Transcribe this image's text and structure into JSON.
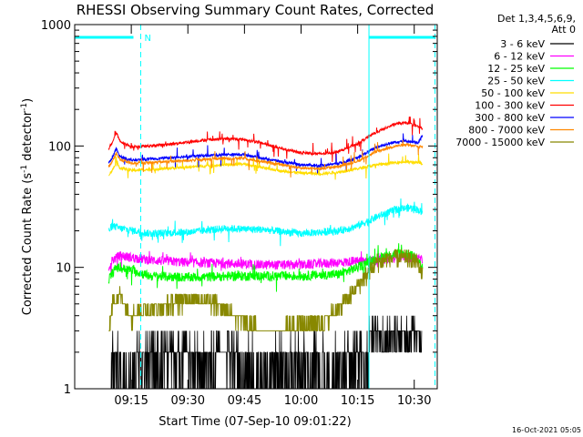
{
  "chart_data": {
    "type": "line",
    "title": "RHESSI Observing Summary Count Rates, Corrected",
    "xlabel": "Start Time (07-Sep-10 09:01:22)",
    "ylabel": "Corrected Count Rate (s⁻¹ detector⁻¹)",
    "ylabel_main": "Corrected Count Rate (s",
    "ylabel_sup1": "-1",
    "ylabel_mid": " detector",
    "ylabel_sup2": "-1",
    "ylabel_end": ")",
    "yscale": "log",
    "ylim": [
      1,
      1000
    ],
    "xlim": [
      "09:01:22",
      "10:37:30"
    ],
    "xticks": [
      {
        "t": 15,
        "label": "09:15"
      },
      {
        "t": 30,
        "label": "09:30"
      },
      {
        "t": 45,
        "label": "09:45"
      },
      {
        "t": 60,
        "label": "10:00"
      },
      {
        "t": 75,
        "label": "10:15"
      },
      {
        "t": 90,
        "label": "10:30"
      }
    ],
    "yticks": [
      {
        "v": 1,
        "label": "1"
      },
      {
        "v": 10,
        "label": "10"
      },
      {
        "v": 100,
        "label": "100"
      },
      {
        "v": 1000,
        "label": "1000"
      }
    ],
    "legend_title_1": "Det 1,3,4,5,6,9,",
    "legend_title_2": "Att 0",
    "legend_placement": "right",
    "timestamp": "16-Oct-2021 05:05",
    "night_marker_label": "N",
    "series": [
      {
        "name": "3 - 6 keV",
        "color": "#000000",
        "kind": "quantized",
        "levels": [
          1,
          2,
          3,
          4
        ]
      },
      {
        "name": "6 - 12 keV",
        "color": "#ff00ff",
        "points": [
          [
            9,
            10
          ],
          [
            10,
            11.5
          ],
          [
            12,
            12.5
          ],
          [
            20,
            11.5
          ],
          [
            30,
            11
          ],
          [
            40,
            10.8
          ],
          [
            50,
            10.5
          ],
          [
            60,
            10.5
          ],
          [
            70,
            11
          ],
          [
            80,
            11.5
          ],
          [
            85,
            12
          ],
          [
            90,
            12
          ],
          [
            92,
            11.5
          ]
        ]
      },
      {
        "name": "12 - 25 keV",
        "color": "#00ff00",
        "points": [
          [
            9,
            8
          ],
          [
            11,
            10
          ],
          [
            15,
            9.5
          ],
          [
            20,
            8.5
          ],
          [
            30,
            8.3
          ],
          [
            45,
            8.5
          ],
          [
            60,
            8.5
          ],
          [
            70,
            8.8
          ],
          [
            75,
            10
          ],
          [
            80,
            12
          ],
          [
            85,
            13
          ],
          [
            88,
            13
          ],
          [
            91,
            12
          ],
          [
            92,
            10
          ]
        ]
      },
      {
        "name": "25 - 50 keV",
        "color": "#00ffff",
        "points": [
          [
            9,
            20
          ],
          [
            10,
            22
          ],
          [
            12,
            21
          ],
          [
            20,
            19
          ],
          [
            30,
            19.5
          ],
          [
            40,
            21
          ],
          [
            50,
            20.5
          ],
          [
            60,
            19
          ],
          [
            70,
            20
          ],
          [
            75,
            22
          ],
          [
            80,
            26
          ],
          [
            85,
            30
          ],
          [
            89,
            31
          ],
          [
            91,
            30
          ],
          [
            92,
            28
          ]
        ]
      },
      {
        "name": "50 - 100 keV",
        "color": "#ffdd00",
        "points": [
          [
            9,
            58
          ],
          [
            10,
            63
          ],
          [
            11,
            74
          ],
          [
            12,
            66
          ],
          [
            15,
            63
          ],
          [
            20,
            64
          ],
          [
            30,
            67
          ],
          [
            40,
            70
          ],
          [
            45,
            71
          ],
          [
            50,
            66
          ],
          [
            55,
            62
          ],
          [
            60,
            60
          ],
          [
            65,
            59
          ],
          [
            70,
            61
          ],
          [
            75,
            65
          ],
          [
            80,
            70
          ],
          [
            85,
            73
          ],
          [
            88,
            74
          ],
          [
            91,
            73
          ],
          [
            92,
            72
          ]
        ]
      },
      {
        "name": "100 - 300 keV",
        "color": "#ff0000",
        "points": [
          [
            9,
            95
          ],
          [
            10,
            108
          ],
          [
            11,
            130
          ],
          [
            12,
            110
          ],
          [
            15,
            98
          ],
          [
            20,
            100
          ],
          [
            25,
            103
          ],
          [
            30,
            108
          ],
          [
            35,
            112
          ],
          [
            40,
            115
          ],
          [
            45,
            113
          ],
          [
            50,
            105
          ],
          [
            55,
            95
          ],
          [
            60,
            88
          ],
          [
            65,
            86
          ],
          [
            70,
            90
          ],
          [
            75,
            105
          ],
          [
            80,
            130
          ],
          [
            85,
            152
          ],
          [
            88,
            155
          ],
          [
            91,
            145
          ],
          [
            92,
            140
          ]
        ]
      },
      {
        "name": "300 - 800 keV",
        "color": "#0000ff",
        "points": [
          [
            9,
            72
          ],
          [
            10,
            80
          ],
          [
            11,
            95
          ],
          [
            12,
            82
          ],
          [
            15,
            76
          ],
          [
            20,
            78
          ],
          [
            30,
            82
          ],
          [
            40,
            85
          ],
          [
            45,
            85
          ],
          [
            50,
            79
          ],
          [
            55,
            74
          ],
          [
            60,
            70
          ],
          [
            65,
            69
          ],
          [
            70,
            72
          ],
          [
            75,
            80
          ],
          [
            80,
            98
          ],
          [
            85,
            108
          ],
          [
            88,
            110
          ],
          [
            91,
            106
          ],
          [
            92,
            120
          ]
        ]
      },
      {
        "name": "800 - 7000 keV",
        "color": "#ff8800",
        "points": [
          [
            9,
            68
          ],
          [
            10,
            75
          ],
          [
            11,
            88
          ],
          [
            12,
            77
          ],
          [
            15,
            72
          ],
          [
            20,
            73
          ],
          [
            30,
            76
          ],
          [
            40,
            79
          ],
          [
            45,
            79
          ],
          [
            50,
            74
          ],
          [
            55,
            70
          ],
          [
            60,
            66
          ],
          [
            65,
            65
          ],
          [
            70,
            68
          ],
          [
            75,
            75
          ],
          [
            80,
            90
          ],
          [
            85,
            100
          ],
          [
            88,
            102
          ],
          [
            91,
            99
          ],
          [
            92,
            98
          ]
        ]
      },
      {
        "name": "7000 - 15000 keV",
        "color": "#888800",
        "kind": "quantized",
        "points": [
          [
            9,
            3
          ],
          [
            10,
            5
          ],
          [
            12,
            6
          ],
          [
            15,
            4
          ],
          [
            20,
            4.5
          ],
          [
            25,
            5
          ],
          [
            30,
            5.5
          ],
          [
            35,
            5.5
          ],
          [
            40,
            4.5
          ],
          [
            45,
            3.5
          ],
          [
            50,
            3
          ],
          [
            55,
            3
          ],
          [
            60,
            3.5
          ],
          [
            65,
            3.5
          ],
          [
            70,
            4.5
          ],
          [
            75,
            7
          ],
          [
            80,
            11
          ],
          [
            85,
            12
          ],
          [
            88,
            12
          ],
          [
            91,
            11
          ],
          [
            92,
            9
          ]
        ]
      }
    ],
    "spans": [
      {
        "name": "night",
        "start": 0,
        "end": 17.5,
        "color": "#00ffff"
      },
      {
        "name": "night",
        "start": 78,
        "end": 95.5,
        "color": "#00ffff"
      }
    ]
  }
}
